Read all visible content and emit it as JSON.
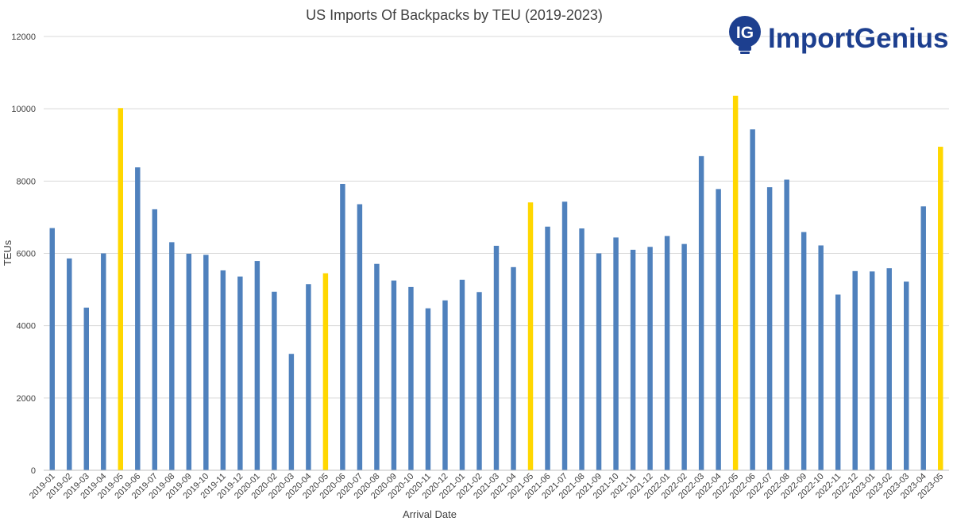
{
  "colors": {
    "bar": "#4f81bd",
    "highlight": "#ffd700",
    "grid": "#d9d9d9",
    "text": "#404040",
    "brand": "#1d3f8f"
  },
  "logo": {
    "letters": "IG",
    "name": "ImportGenius"
  },
  "chart_data": {
    "type": "bar",
    "title": "US Imports Of Backpacks by TEU (2019-2023)",
    "xlabel": "Arrival Date",
    "ylabel": "TEUs",
    "ylim": [
      0,
      12000
    ],
    "yticks": [
      0,
      2000,
      4000,
      6000,
      8000,
      10000,
      12000
    ],
    "grid": true,
    "legend": "none",
    "highlighted_categories": [
      "2019-05",
      "2020-05",
      "2021-05",
      "2022-05",
      "2023-05"
    ],
    "categories": [
      "2019-01",
      "2019-02",
      "2019-03",
      "2019-04",
      "2019-05",
      "2019-06",
      "2019-07",
      "2019-08",
      "2019-09",
      "2019-10",
      "2019-11",
      "2019-12",
      "2020-01",
      "2020-02",
      "2020-03",
      "2020-04",
      "2020-05",
      "2020-06",
      "2020-07",
      "2020-08",
      "2020-09",
      "2020-10",
      "2020-11",
      "2020-12",
      "2021-01",
      "2021-02",
      "2021-03",
      "2021-04",
      "2021-05",
      "2021-06",
      "2021-07",
      "2021-08",
      "2021-09",
      "2021-10",
      "2021-11",
      "2021-12",
      "2022-01",
      "2022-02",
      "2022-03",
      "2022-04",
      "2022-05",
      "2022-06",
      "2022-07",
      "2022-08",
      "2022-09",
      "2022-10",
      "2022-11",
      "2022-12",
      "2023-01",
      "2023-02",
      "2023-03",
      "2023-04",
      "2023-05"
    ],
    "values": [
      6700,
      5860,
      4500,
      6000,
      10020,
      8380,
      7220,
      6310,
      5990,
      5960,
      5530,
      5360,
      5790,
      4940,
      3220,
      5150,
      5450,
      7920,
      7360,
      5710,
      5250,
      5070,
      4480,
      4700,
      5270,
      4930,
      6210,
      5620,
      7410,
      6740,
      7430,
      6690,
      6000,
      6440,
      6100,
      6180,
      6480,
      6260,
      8690,
      7780,
      10360,
      9430,
      7830,
      8040,
      6590,
      6220,
      4860,
      5510,
      5500,
      5590,
      5220,
      7300,
      8950
    ]
  }
}
